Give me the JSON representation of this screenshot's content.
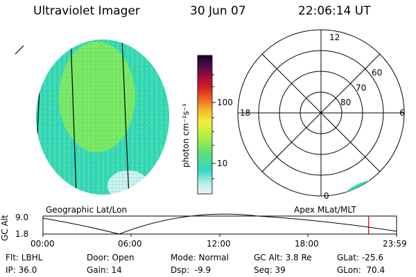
{
  "header": {
    "title": "Ultraviolet Imager",
    "date": "30 Jun 07",
    "time": "22:06:14 UT"
  },
  "colorbar": {
    "label": "photon cm⁻²s⁻¹",
    "ticks": [
      "100",
      "10"
    ]
  },
  "polar_plot": {
    "mlt_labels": [
      "12",
      "18",
      "6",
      "0"
    ],
    "lat_labels": [
      "60",
      "70",
      "80"
    ]
  },
  "altitude_panel": {
    "ylabel": "GC Alt",
    "yticks": [
      "9.0",
      "1.8"
    ],
    "left_title": "Geographic Lat/Lon",
    "right_title": "Apex MLat/MLT",
    "xticks": [
      "00:00",
      "06:00",
      "12:00",
      "18:00",
      "23:59"
    ],
    "current_time_hours": 22.104,
    "cursor_color": "#cc0000"
  },
  "footer": {
    "filter": "Flt: LBHL",
    "ip": "IP: 36.0",
    "door": "Door: Open",
    "gain": "Gain: 14",
    "mode": "Mode: Normal",
    "dsp": "Dsp:  -9.9",
    "gc_alt": "GC Alt: 3.8 Re",
    "seq": "Seq: 39",
    "glat": "GLat: -25.6",
    "glon": "GLon:  70.4"
  }
}
